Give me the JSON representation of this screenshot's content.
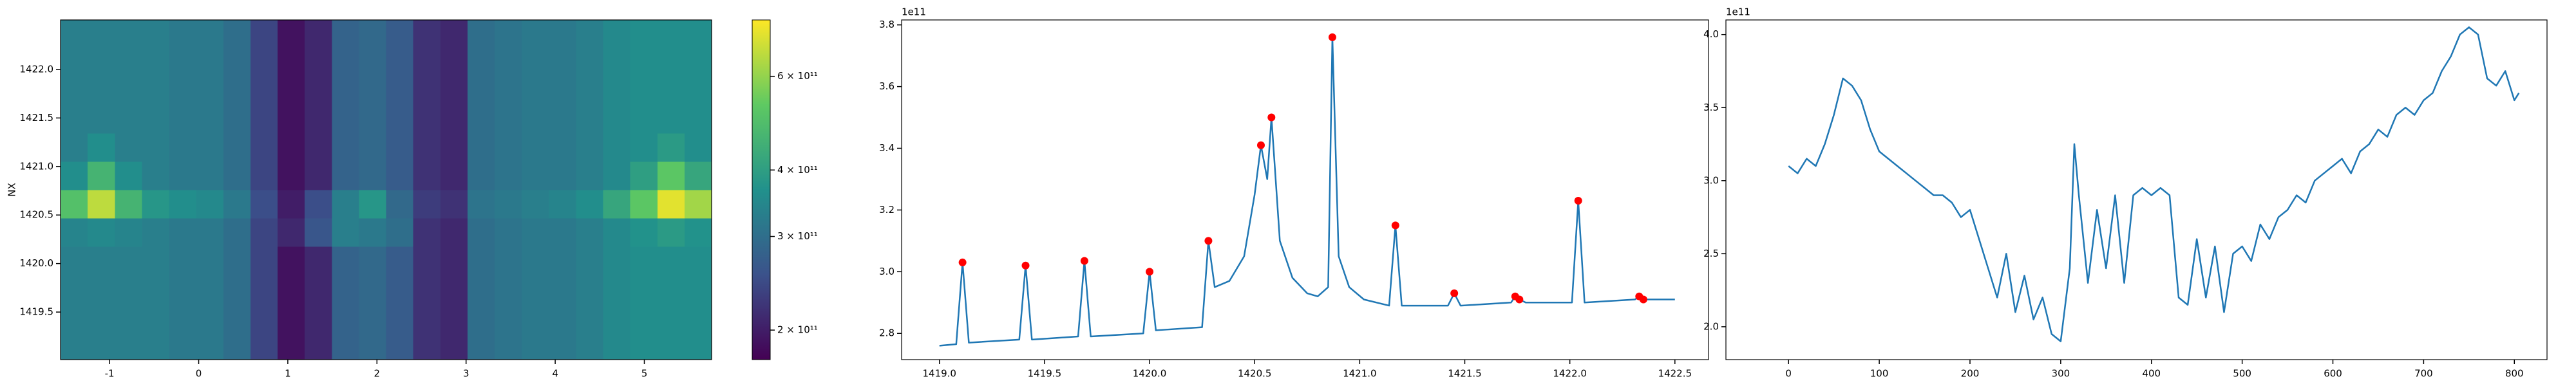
{
  "chart_data": [
    {
      "type": "heatmap",
      "ylabel": "NX",
      "xlim": [
        -1.55,
        5.755
      ],
      "ylim": [
        1419.01,
        1422.51
      ],
      "xticks": [
        -1,
        0,
        1,
        2,
        3,
        4,
        5
      ],
      "yticks": [
        1419.5,
        {
          "value": 1420.0,
          "label": "1420.0"
        },
        1420.5,
        {
          "value": 1421.0,
          "label": "1421.0"
        },
        1421.5,
        {
          "value": 1422.0,
          "label": "1422.0"
        }
      ],
      "colormap": [
        "#440154",
        "#3b528b",
        "#21918c",
        "#5ec962",
        "#fde725"
      ],
      "colorbar": {
        "scale": "log",
        "lim": [
          176000000000.0,
          766000000000.0
        ],
        "ticks": [
          {
            "value": 200000000000.0,
            "label": "2 × 10¹¹"
          },
          {
            "value": 300000000000.0,
            "label": "3 × 10¹¹"
          },
          {
            "value": 400000000000.0,
            "label": "4 × 10¹¹"
          },
          {
            "value": 600000000000.0,
            "label": "6 × 10¹¹"
          }
        ]
      },
      "z": [
        [
          330000000000.0,
          330000000000.0,
          330000000000.0,
          330000000000.0,
          320000000000.0,
          320000000000.0,
          300000000000.0,
          240000000000.0,
          190000000000.0,
          210000000000.0,
          280000000000.0,
          290000000000.0,
          270000000000.0,
          220000000000.0,
          210000000000.0,
          300000000000.0,
          310000000000.0,
          320000000000.0,
          320000000000.0,
          330000000000.0,
          350000000000.0,
          360000000000.0,
          360000000000.0,
          360000000000.0
        ],
        [
          330000000000.0,
          330000000000.0,
          330000000000.0,
          330000000000.0,
          320000000000.0,
          320000000000.0,
          300000000000.0,
          240000000000.0,
          190000000000.0,
          210000000000.0,
          280000000000.0,
          290000000000.0,
          270000000000.0,
          220000000000.0,
          210000000000.0,
          300000000000.0,
          310000000000.0,
          320000000000.0,
          320000000000.0,
          330000000000.0,
          350000000000.0,
          360000000000.0,
          360000000000.0,
          360000000000.0
        ],
        [
          330000000000.0,
          330000000000.0,
          330000000000.0,
          330000000000.0,
          320000000000.0,
          320000000000.0,
          300000000000.0,
          240000000000.0,
          190000000000.0,
          210000000000.0,
          280000000000.0,
          290000000000.0,
          270000000000.0,
          220000000000.0,
          210000000000.0,
          300000000000.0,
          310000000000.0,
          320000000000.0,
          320000000000.0,
          330000000000.0,
          350000000000.0,
          360000000000.0,
          360000000000.0,
          360000000000.0
        ],
        [
          330000000000.0,
          330000000000.0,
          330000000000.0,
          330000000000.0,
          320000000000.0,
          320000000000.0,
          300000000000.0,
          240000000000.0,
          190000000000.0,
          210000000000.0,
          280000000000.0,
          290000000000.0,
          270000000000.0,
          220000000000.0,
          210000000000.0,
          300000000000.0,
          310000000000.0,
          320000000000.0,
          320000000000.0,
          330000000000.0,
          350000000000.0,
          360000000000.0,
          360000000000.0,
          360000000000.0
        ],
        [
          340000000000.0,
          350000000000.0,
          340000000000.0,
          330000000000.0,
          320000000000.0,
          320000000000.0,
          300000000000.0,
          240000000000.0,
          210000000000.0,
          260000000000.0,
          330000000000.0,
          320000000000.0,
          300000000000.0,
          220000000000.0,
          210000000000.0,
          300000000000.0,
          310000000000.0,
          320000000000.0,
          320000000000.0,
          330000000000.0,
          350000000000.0,
          370000000000.0,
          390000000000.0,
          370000000000.0
        ],
        [
          500000000000.0,
          660000000000.0,
          460000000000.0,
          380000000000.0,
          360000000000.0,
          350000000000.0,
          320000000000.0,
          250000000000.0,
          200000000000.0,
          250000000000.0,
          330000000000.0,
          380000000000.0,
          290000000000.0,
          230000000000.0,
          220000000000.0,
          310000000000.0,
          320000000000.0,
          330000000000.0,
          340000000000.0,
          360000000000.0,
          420000000000.0,
          520000000000.0,
          720000000000.0,
          620000000000.0
        ],
        [
          360000000000.0,
          460000000000.0,
          360000000000.0,
          330000000000.0,
          320000000000.0,
          320000000000.0,
          300000000000.0,
          240000000000.0,
          190000000000.0,
          210000000000.0,
          280000000000.0,
          290000000000.0,
          270000000000.0,
          220000000000.0,
          210000000000.0,
          300000000000.0,
          310000000000.0,
          320000000000.0,
          320000000000.0,
          330000000000.0,
          350000000000.0,
          400000000000.0,
          520000000000.0,
          420000000000.0
        ],
        [
          330000000000.0,
          360000000000.0,
          330000000000.0,
          330000000000.0,
          320000000000.0,
          320000000000.0,
          300000000000.0,
          240000000000.0,
          190000000000.0,
          210000000000.0,
          280000000000.0,
          290000000000.0,
          270000000000.0,
          220000000000.0,
          210000000000.0,
          300000000000.0,
          310000000000.0,
          320000000000.0,
          320000000000.0,
          330000000000.0,
          350000000000.0,
          360000000000.0,
          390000000000.0,
          360000000000.0
        ],
        [
          330000000000.0,
          330000000000.0,
          330000000000.0,
          330000000000.0,
          320000000000.0,
          320000000000.0,
          300000000000.0,
          240000000000.0,
          190000000000.0,
          210000000000.0,
          280000000000.0,
          290000000000.0,
          270000000000.0,
          220000000000.0,
          210000000000.0,
          300000000000.0,
          310000000000.0,
          320000000000.0,
          320000000000.0,
          330000000000.0,
          350000000000.0,
          360000000000.0,
          360000000000.0,
          360000000000.0
        ],
        [
          330000000000.0,
          330000000000.0,
          330000000000.0,
          330000000000.0,
          320000000000.0,
          320000000000.0,
          300000000000.0,
          240000000000.0,
          190000000000.0,
          210000000000.0,
          280000000000.0,
          290000000000.0,
          270000000000.0,
          220000000000.0,
          210000000000.0,
          300000000000.0,
          310000000000.0,
          320000000000.0,
          320000000000.0,
          330000000000.0,
          350000000000.0,
          360000000000.0,
          360000000000.0,
          360000000000.0
        ],
        [
          330000000000.0,
          330000000000.0,
          330000000000.0,
          330000000000.0,
          320000000000.0,
          320000000000.0,
          300000000000.0,
          240000000000.0,
          190000000000.0,
          210000000000.0,
          280000000000.0,
          290000000000.0,
          270000000000.0,
          220000000000.0,
          210000000000.0,
          300000000000.0,
          310000000000.0,
          320000000000.0,
          320000000000.0,
          330000000000.0,
          350000000000.0,
          360000000000.0,
          360000000000.0,
          360000000000.0
        ],
        [
          330000000000.0,
          330000000000.0,
          330000000000.0,
          330000000000.0,
          320000000000.0,
          320000000000.0,
          300000000000.0,
          240000000000.0,
          190000000000.0,
          210000000000.0,
          280000000000.0,
          290000000000.0,
          270000000000.0,
          220000000000.0,
          210000000000.0,
          300000000000.0,
          310000000000.0,
          320000000000.0,
          320000000000.0,
          330000000000.0,
          350000000000.0,
          360000000000.0,
          360000000000.0,
          360000000000.0
        ]
      ]
    },
    {
      "type": "line",
      "offset_text": "1e11",
      "xlim": [
        1418.82,
        1422.66
      ],
      "ylim": [
        2.715,
        3.816
      ],
      "xticks": [
        {
          "value": 1419.0,
          "label": "1419.0"
        },
        1419.5,
        {
          "value": 1420.0,
          "label": "1420.0"
        },
        1420.5,
        {
          "value": 1421.0,
          "label": "1421.0"
        },
        1421.5,
        {
          "value": 1422.0,
          "label": "1422.0"
        },
        1422.5
      ],
      "yticks": [
        2.8,
        {
          "value": 3.0,
          "label": "3.0"
        },
        3.2,
        3.4,
        3.6,
        3.8
      ],
      "series": [
        {
          "color": "#1f77b4",
          "x": [
            1419.0,
            1419.08,
            1419.11,
            1419.14,
            1419.38,
            1419.41,
            1419.44,
            1419.66,
            1419.69,
            1419.72,
            1419.97,
            1420.0,
            1420.03,
            1420.25,
            1420.28,
            1420.31,
            1420.38,
            1420.45,
            1420.5,
            1420.53,
            1420.56,
            1420.58,
            1420.62,
            1420.68,
            1420.75,
            1420.8,
            1420.85,
            1420.87,
            1420.9,
            1420.95,
            1421.02,
            1421.14,
            1421.17,
            1421.2,
            1421.42,
            1421.45,
            1421.48,
            1421.72,
            1421.74,
            1421.76,
            1421.79,
            1422.01,
            1422.04,
            1422.07,
            1422.31,
            1422.33,
            1422.35,
            1422.5
          ],
          "values": [
            2.76,
            2.765,
            3.03,
            2.77,
            2.78,
            3.02,
            2.78,
            2.79,
            3.035,
            2.79,
            2.8,
            3.0,
            2.81,
            2.82,
            3.1,
            2.95,
            2.97,
            3.05,
            3.25,
            3.41,
            3.3,
            3.5,
            3.1,
            2.98,
            2.93,
            2.92,
            2.95,
            3.76,
            3.05,
            2.95,
            2.91,
            2.89,
            3.15,
            2.89,
            2.89,
            2.93,
            2.89,
            2.9,
            2.92,
            2.91,
            2.9,
            2.9,
            3.23,
            2.9,
            2.91,
            2.92,
            2.91,
            2.91
          ]
        },
        {
          "color": "#ff0000",
          "marker": "o",
          "x": [
            1419.11,
            1419.41,
            1419.69,
            1420.0,
            1420.28,
            1420.53,
            1420.58,
            1420.87,
            1421.17,
            1421.45,
            1421.74,
            1421.76,
            1422.04,
            1422.33,
            1422.35
          ],
          "values": [
            3.03,
            3.02,
            3.035,
            3.0,
            3.1,
            3.41,
            3.5,
            3.76,
            3.15,
            2.93,
            2.92,
            2.91,
            3.23,
            2.92,
            2.91
          ]
        }
      ]
    },
    {
      "type": "line",
      "offset_text": "1e11",
      "xlim": [
        -69,
        836
      ],
      "ylim": [
        1.775,
        4.1
      ],
      "xticks": [
        0,
        100,
        200,
        300,
        400,
        500,
        600,
        700,
        800
      ],
      "yticks": [
        {
          "value": 2.0,
          "label": "2.0"
        },
        2.5,
        {
          "value": 3.0,
          "label": "3.0"
        },
        3.5,
        {
          "value": 4.0,
          "label": "4.0"
        }
      ],
      "series": [
        {
          "color": "#1f77b4",
          "x": [
            0,
            10,
            20,
            30,
            40,
            50,
            60,
            70,
            80,
            90,
            100,
            110,
            120,
            130,
            140,
            150,
            160,
            170,
            180,
            190,
            200,
            210,
            220,
            230,
            240,
            250,
            260,
            270,
            280,
            290,
            300,
            310,
            315,
            320,
            330,
            340,
            350,
            360,
            370,
            380,
            390,
            400,
            410,
            420,
            430,
            440,
            450,
            460,
            470,
            480,
            490,
            500,
            510,
            520,
            530,
            540,
            550,
            560,
            570,
            580,
            590,
            600,
            610,
            620,
            630,
            640,
            650,
            660,
            670,
            680,
            690,
            700,
            710,
            720,
            730,
            740,
            750,
            760,
            770,
            780,
            790,
            800,
            805
          ],
          "values": [
            3.1,
            3.05,
            3.15,
            3.1,
            3.25,
            3.45,
            3.7,
            3.65,
            3.55,
            3.35,
            3.2,
            3.15,
            3.1,
            3.05,
            3.0,
            2.95,
            2.9,
            2.9,
            2.85,
            2.75,
            2.8,
            2.6,
            2.4,
            2.2,
            2.5,
            2.1,
            2.35,
            2.05,
            2.2,
            1.95,
            1.9,
            2.4,
            3.25,
            2.9,
            2.3,
            2.8,
            2.4,
            2.9,
            2.3,
            2.9,
            2.95,
            2.9,
            2.95,
            2.9,
            2.2,
            2.15,
            2.6,
            2.2,
            2.55,
            2.1,
            2.5,
            2.55,
            2.45,
            2.7,
            2.6,
            2.75,
            2.8,
            2.9,
            2.85,
            3.0,
            3.05,
            3.1,
            3.15,
            3.05,
            3.2,
            3.25,
            3.35,
            3.3,
            3.45,
            3.5,
            3.45,
            3.55,
            3.6,
            3.75,
            3.85,
            4.0,
            4.05,
            4.0,
            3.7,
            3.65,
            3.75,
            3.55,
            3.6
          ]
        }
      ]
    }
  ]
}
